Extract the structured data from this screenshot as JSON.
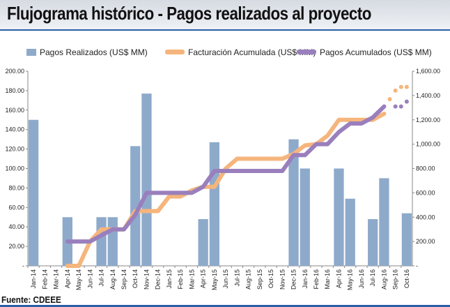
{
  "header": {
    "title": "Flujograma histórico - Pagos realizados al proyecto"
  },
  "footer": {
    "source": "Fuente: CDEEE"
  },
  "colors": {
    "bars": "#8eaacb",
    "billing": "#f5b57c",
    "payments": "#9a7fbd",
    "axis": "#888888",
    "accent": "#2b5ea6"
  },
  "chart_data": {
    "type": "bar",
    "title": "Flujograma histórico - Pagos realizados al proyecto",
    "categories": [
      "Jan-14",
      "Feb-14",
      "Mar-14",
      "Apr-14",
      "May-14",
      "Jun-14",
      "Jul-14",
      "Aug-14",
      "Sep-14",
      "Oct-14",
      "Nov-14",
      "Dec-14",
      "Jan-15",
      "Feb-15",
      "Mar-15",
      "Apr-15",
      "May-15",
      "Jun-15",
      "Jul-15",
      "Aug-15",
      "Sep-15",
      "Oct-15",
      "Nov-15",
      "Dec-15",
      "Jan-16",
      "Feb-16",
      "Mar-16",
      "Apr-16",
      "May-16",
      "Jun-16",
      "Jul-16",
      "Aug-16",
      "Sep-16",
      "Oct-16"
    ],
    "y_left": {
      "ylim": [
        0,
        200
      ],
      "ticks": [
        "-",
        "20.00",
        "40.00",
        "60.00",
        "80.00",
        "100.00",
        "120.00",
        "140.00",
        "160.00",
        "180.00",
        "200.00"
      ]
    },
    "y_right": {
      "ylim": [
        0,
        1600
      ],
      "ticks": [
        "-",
        "200.00",
        "400.00",
        "600.00",
        "800.00",
        "1,000.00",
        "1,200.00",
        "1,400.00",
        "1,600.00"
      ]
    },
    "legend": [
      "Pagos  Realizados (US$ MM)",
      "Facturación Acumulada (US$ MM)",
      "Pagos Acumulados (US$ MM)"
    ],
    "series": [
      {
        "name": "Pagos  Realizados (US$ MM)",
        "kind": "bar",
        "axis": "left",
        "values": [
          150,
          0,
          0,
          50,
          0,
          0,
          50,
          50,
          0,
          123,
          177,
          0,
          0,
          0,
          0,
          48,
          127,
          0,
          0,
          0,
          0,
          0,
          0,
          130,
          100,
          0,
          0,
          100,
          69,
          0,
          48,
          90,
          0,
          54
        ]
      },
      {
        "name": "Facturación Acumulada (US$ MM)",
        "kind": "line",
        "axis": "right",
        "values": [
          null,
          null,
          null,
          0,
          0,
          200,
          300,
          300,
          300,
          450,
          450,
          450,
          570,
          570,
          620,
          650,
          650,
          800,
          880,
          880,
          880,
          880,
          880,
          920,
          990,
          1000,
          1070,
          1200,
          1200,
          1200,
          1200,
          1250,
          null,
          null
        ],
        "projection": [
          [
            31,
            1310
          ],
          [
            31.5,
            1370
          ],
          [
            32,
            1440
          ],
          [
            32.5,
            1470
          ],
          [
            33,
            1470
          ]
        ]
      },
      {
        "name": "Pagos Acumulados (US$ MM)",
        "kind": "line",
        "axis": "right",
        "values": [
          null,
          null,
          null,
          200,
          200,
          200,
          250,
          300,
          300,
          420,
          600,
          600,
          600,
          600,
          600,
          650,
          780,
          780,
          780,
          780,
          780,
          780,
          780,
          910,
          910,
          1000,
          1000,
          1100,
          1170,
          1170,
          1220,
          1310,
          null,
          null
        ],
        "projection": [
          [
            32,
            1310
          ],
          [
            32.5,
            1310
          ],
          [
            33,
            1350
          ]
        ]
      }
    ]
  }
}
